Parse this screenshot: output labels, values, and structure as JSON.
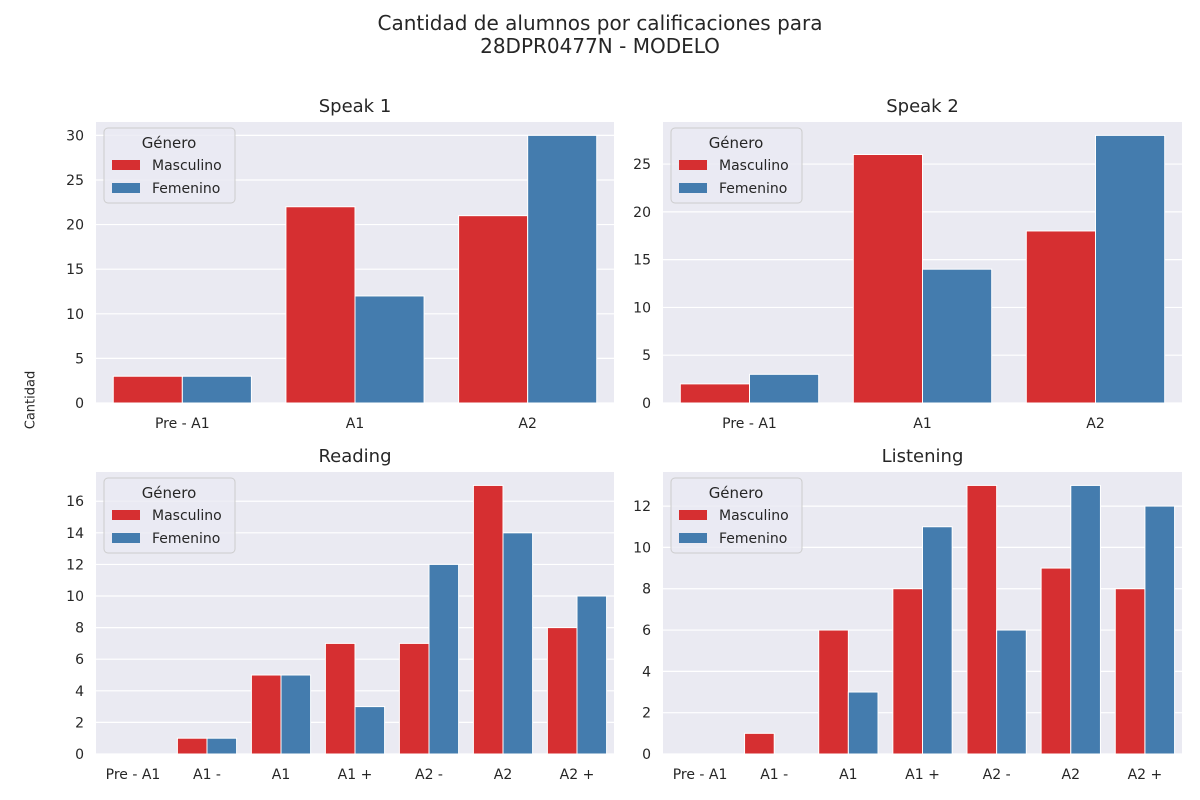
{
  "suptitle": {
    "line1": "Cantidad de alumnos por calificaciones para",
    "line2": "28DPR0477N - MODELO"
  },
  "ylabel": "Cantidad",
  "colors": {
    "masculino": "#d62f31",
    "femenino": "#447cae",
    "panel_bg": "#eaeaf2",
    "grid": "#ffffff"
  },
  "chart_data": [
    {
      "type": "bar",
      "title": "Speak 1",
      "categories": [
        "Pre - A1",
        "A1",
        "A2"
      ],
      "series": [
        {
          "name": "Masculino",
          "values": [
            3,
            22,
            21
          ]
        },
        {
          "name": "Femenino",
          "values": [
            3,
            12,
            30
          ]
        }
      ],
      "yticks": [
        0,
        5,
        10,
        15,
        20,
        25,
        30
      ],
      "ylim": [
        0,
        31.5
      ],
      "grid": true,
      "legend": {
        "title": "Género",
        "placement": "upper-left"
      }
    },
    {
      "type": "bar",
      "title": "Speak 2",
      "categories": [
        "Pre - A1",
        "A1",
        "A2"
      ],
      "series": [
        {
          "name": "Masculino",
          "values": [
            2,
            26,
            18
          ]
        },
        {
          "name": "Femenino",
          "values": [
            3,
            14,
            28
          ]
        }
      ],
      "yticks": [
        0,
        5,
        10,
        15,
        20,
        25
      ],
      "ylim": [
        0,
        29.4
      ],
      "grid": true,
      "legend": {
        "title": "Género",
        "placement": "upper-left"
      }
    },
    {
      "type": "bar",
      "title": "Reading",
      "categories": [
        "Pre - A1",
        "A1 -",
        "A1",
        "A1 +",
        "A2 -",
        "A2",
        "A2 +"
      ],
      "series": [
        {
          "name": "Masculino",
          "values": [
            0,
            1,
            5,
            7,
            7,
            17,
            8
          ]
        },
        {
          "name": "Femenino",
          "values": [
            0,
            1,
            5,
            3,
            12,
            14,
            10
          ]
        }
      ],
      "yticks": [
        0,
        2,
        4,
        6,
        8,
        10,
        12,
        14,
        16
      ],
      "ylim": [
        0,
        17.85
      ],
      "grid": true,
      "legend": {
        "title": "Género",
        "placement": "upper-left"
      }
    },
    {
      "type": "bar",
      "title": "Listening",
      "categories": [
        "Pre - A1",
        "A1 -",
        "A1",
        "A1 +",
        "A2 -",
        "A2",
        "A2 +"
      ],
      "series": [
        {
          "name": "Masculino",
          "values": [
            0,
            1,
            6,
            8,
            13,
            9,
            8
          ]
        },
        {
          "name": "Femenino",
          "values": [
            0,
            0,
            3,
            11,
            6,
            13,
            12
          ]
        }
      ],
      "yticks": [
        0,
        2,
        4,
        6,
        8,
        10,
        12
      ],
      "ylim": [
        0,
        13.65
      ],
      "grid": true,
      "legend": {
        "title": "Género",
        "placement": "upper-left"
      }
    }
  ]
}
